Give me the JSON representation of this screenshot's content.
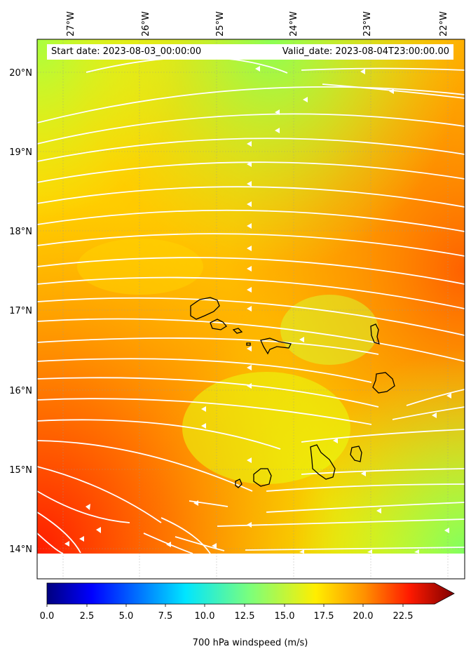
{
  "header": {
    "start_date": "Start date: 2023-08-03_00:00:00",
    "valid_date": "Valid_date: 2023-08-04T23:00:00.00"
  },
  "map": {
    "lon_labels": [
      "27°W",
      "26°W",
      "25°W",
      "24°W",
      "23°W",
      "22°W"
    ],
    "lat_labels": [
      "20°N",
      "19°N",
      "18°N",
      "17°N",
      "16°N",
      "15°N",
      "14°N"
    ],
    "field": "700 hPa windspeed",
    "overlays": [
      "windspeed-contours",
      "streamlines",
      "coastlines"
    ]
  },
  "colorbar": {
    "label": "700 hPa windspeed (m/s)",
    "ticks": [
      "0.0",
      "2.5",
      "5.0",
      "7.5",
      "10.0",
      "12.5",
      "15.0",
      "17.5",
      "20.0",
      "22.5"
    ],
    "colormap": "jet",
    "extend": "max"
  },
  "colors": {
    "streamline": "#ffffff",
    "coastline": "#000000"
  }
}
